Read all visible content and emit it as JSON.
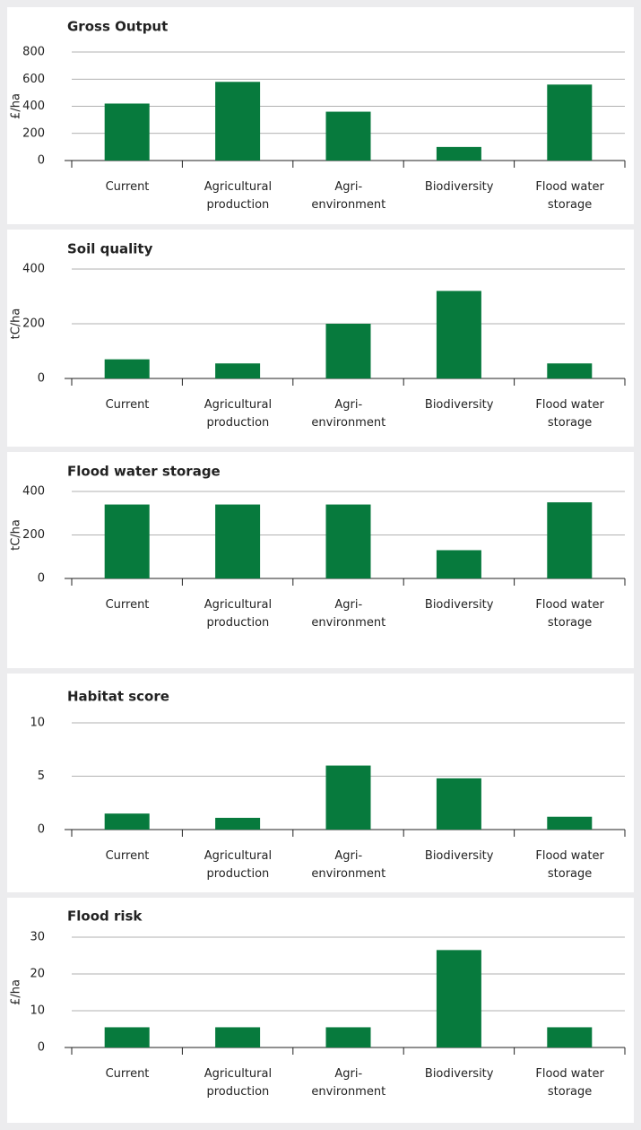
{
  "chart_data": [
    {
      "type": "bar",
      "title": "Gross Output",
      "y_label": "£/ha",
      "categories": [
        "Current",
        "Agricultural\nproduction",
        "Agri-\nenvironment",
        "Biodiversity",
        "Flood water\nstorage"
      ],
      "values": [
        420,
        580,
        360,
        100,
        560
      ],
      "color": "#077a3d",
      "ylim": [
        0,
        800
      ],
      "yticks": [
        0,
        200,
        400,
        600,
        800
      ],
      "grid": true
    },
    {
      "type": "bar",
      "title": "Soil quality",
      "y_label": "tC/ha",
      "categories": [
        "Current",
        "Agricultural\nproduction",
        "Agri-\nenvironment",
        "Biodiversity",
        "Flood water\nstorage"
      ],
      "values": [
        70,
        55,
        200,
        320,
        55
      ],
      "color": "#077a3d",
      "ylim": [
        0,
        400
      ],
      "yticks": [
        0,
        200,
        400
      ],
      "grid": true
    },
    {
      "type": "bar",
      "title": "Flood water storage",
      "y_label": "tC/ha",
      "categories": [
        "Current",
        "Agricultural\nproduction",
        "Agri-\nenvironment",
        "Biodiversity",
        "Flood water\nstorage"
      ],
      "values": [
        340,
        340,
        340,
        130,
        350
      ],
      "color": "#077a3d",
      "ylim": [
        0,
        400
      ],
      "yticks": [
        0,
        200,
        400
      ],
      "grid": true
    },
    {
      "type": "bar",
      "title": "Habitat score",
      "categories": [
        "Current",
        "Agricultural\nproduction",
        "Agri-\nenvironment",
        "Biodiversity",
        "Flood water\nstorage"
      ],
      "values": [
        1.5,
        1.1,
        6,
        4.8,
        1.2
      ],
      "color": "#077a3d",
      "ylim": [
        0,
        10
      ],
      "yticks": [
        0,
        5,
        10
      ],
      "grid": true
    },
    {
      "type": "bar",
      "title": "Flood risk",
      "y_label": "£/ha",
      "categories": [
        "Current",
        "Agricultural\nproduction",
        "Agri-\nenvironment",
        "Biodiversity",
        "Flood water\nstorage"
      ],
      "values": [
        5.5,
        5.5,
        5.5,
        26.5,
        5.5
      ],
      "color": "#077a3d",
      "ylim": [
        0,
        30
      ],
      "yticks": [
        0,
        10,
        20,
        30
      ],
      "grid": true
    }
  ]
}
